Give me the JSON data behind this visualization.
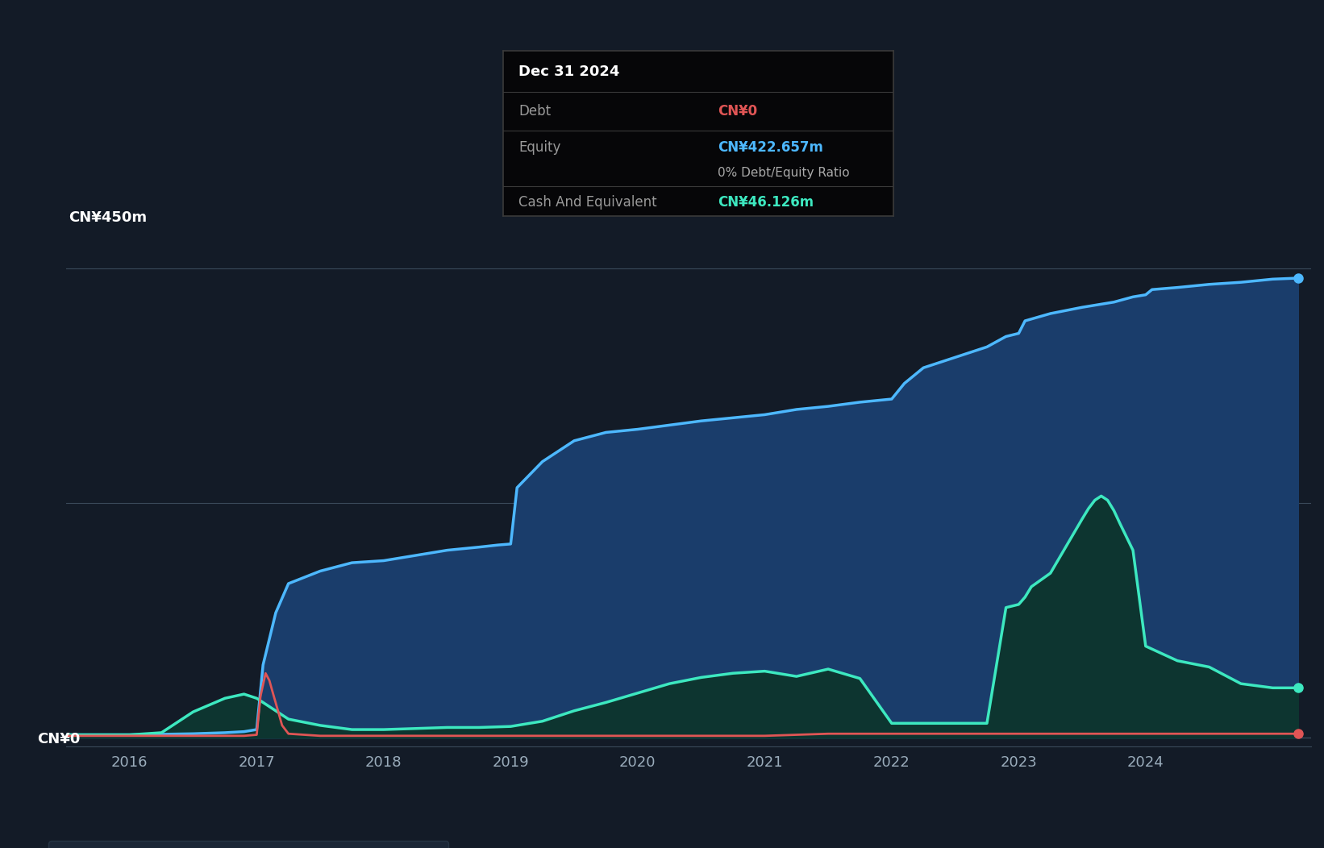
{
  "background_color": "#131b27",
  "plot_bg_color": "#131b27",
  "y_label_top": "CN¥450m",
  "y_label_bottom": "CN¥0",
  "x_ticks": [
    2016,
    2017,
    2018,
    2019,
    2020,
    2021,
    2022,
    2023,
    2024
  ],
  "ylim": [
    -8,
    480
  ],
  "xlim": [
    2015.5,
    2025.3
  ],
  "equity_color": "#4db8ff",
  "equity_fill": "#1a3d6b",
  "debt_color": "#e05555",
  "cash_color": "#3de8c0",
  "cash_fill": "#0d3530",
  "legend_bg": "#1e2a3a",
  "tooltip_bg": "#060608",
  "tooltip_border": "#3a3a3a",
  "tooltip_title": "Dec 31 2024",
  "tooltip_debt_label": "Debt",
  "tooltip_debt_value": "CN¥0",
  "tooltip_equity_label": "Equity",
  "tooltip_equity_value": "CN¥422.657m",
  "tooltip_ratio": "0% Debt/Equity Ratio",
  "tooltip_cash_label": "Cash And Equivalent",
  "tooltip_cash_value": "CN¥46.126m",
  "equity_x": [
    2015.5,
    2016.0,
    2016.5,
    2016.75,
    2016.9,
    2017.0,
    2017.05,
    2017.15,
    2017.25,
    2017.5,
    2017.75,
    2018.0,
    2018.25,
    2018.5,
    2018.75,
    2018.9,
    2019.0,
    2019.05,
    2019.25,
    2019.5,
    2019.75,
    2020.0,
    2020.25,
    2020.5,
    2020.75,
    2021.0,
    2021.25,
    2021.5,
    2021.75,
    2022.0,
    2022.1,
    2022.25,
    2022.5,
    2022.75,
    2022.9,
    2023.0,
    2023.05,
    2023.25,
    2023.5,
    2023.75,
    2023.9,
    2024.0,
    2024.05,
    2024.25,
    2024.5,
    2024.75,
    2025.0,
    2025.2
  ],
  "equity_y": [
    3,
    3,
    4,
    5,
    6,
    8,
    70,
    120,
    148,
    160,
    168,
    170,
    175,
    180,
    183,
    185,
    186,
    240,
    265,
    285,
    293,
    296,
    300,
    304,
    307,
    310,
    315,
    318,
    322,
    325,
    340,
    355,
    365,
    375,
    385,
    388,
    400,
    407,
    413,
    418,
    423,
    425,
    430,
    432,
    435,
    437,
    440,
    441
  ],
  "debt_x": [
    2015.5,
    2016.0,
    2016.5,
    2016.9,
    2017.0,
    2017.03,
    2017.07,
    2017.1,
    2017.13,
    2017.17,
    2017.2,
    2017.25,
    2017.5,
    2017.75,
    2018.0,
    2019.0,
    2020.0,
    2021.0,
    2021.5,
    2022.0,
    2022.5,
    2023.0,
    2023.5,
    2024.0,
    2024.5,
    2025.0,
    2025.2
  ],
  "debt_y": [
    2,
    2,
    2,
    2,
    3,
    40,
    62,
    55,
    42,
    25,
    12,
    4,
    2,
    2,
    2,
    2,
    2,
    2,
    4,
    4,
    4,
    4,
    4,
    4,
    4,
    4,
    4
  ],
  "cash_x": [
    2015.5,
    2016.0,
    2016.25,
    2016.5,
    2016.75,
    2016.9,
    2017.0,
    2017.1,
    2017.25,
    2017.5,
    2017.75,
    2018.0,
    2018.25,
    2018.5,
    2018.75,
    2019.0,
    2019.25,
    2019.5,
    2019.75,
    2020.0,
    2020.25,
    2020.5,
    2020.75,
    2021.0,
    2021.25,
    2021.5,
    2021.75,
    2022.0,
    2022.1,
    2022.25,
    2022.5,
    2022.75,
    2022.9,
    2023.0,
    2023.05,
    2023.1,
    2023.25,
    2023.5,
    2023.55,
    2023.6,
    2023.65,
    2023.7,
    2023.75,
    2023.8,
    2023.9,
    2024.0,
    2024.25,
    2024.5,
    2024.75,
    2025.0,
    2025.2
  ],
  "cash_y": [
    3,
    3,
    5,
    25,
    38,
    42,
    38,
    30,
    18,
    12,
    8,
    8,
    9,
    10,
    10,
    11,
    16,
    26,
    34,
    43,
    52,
    58,
    62,
    64,
    59,
    66,
    57,
    14,
    14,
    14,
    14,
    14,
    125,
    128,
    135,
    145,
    158,
    210,
    220,
    228,
    232,
    228,
    218,
    205,
    180,
    88,
    74,
    68,
    52,
    48,
    48
  ]
}
